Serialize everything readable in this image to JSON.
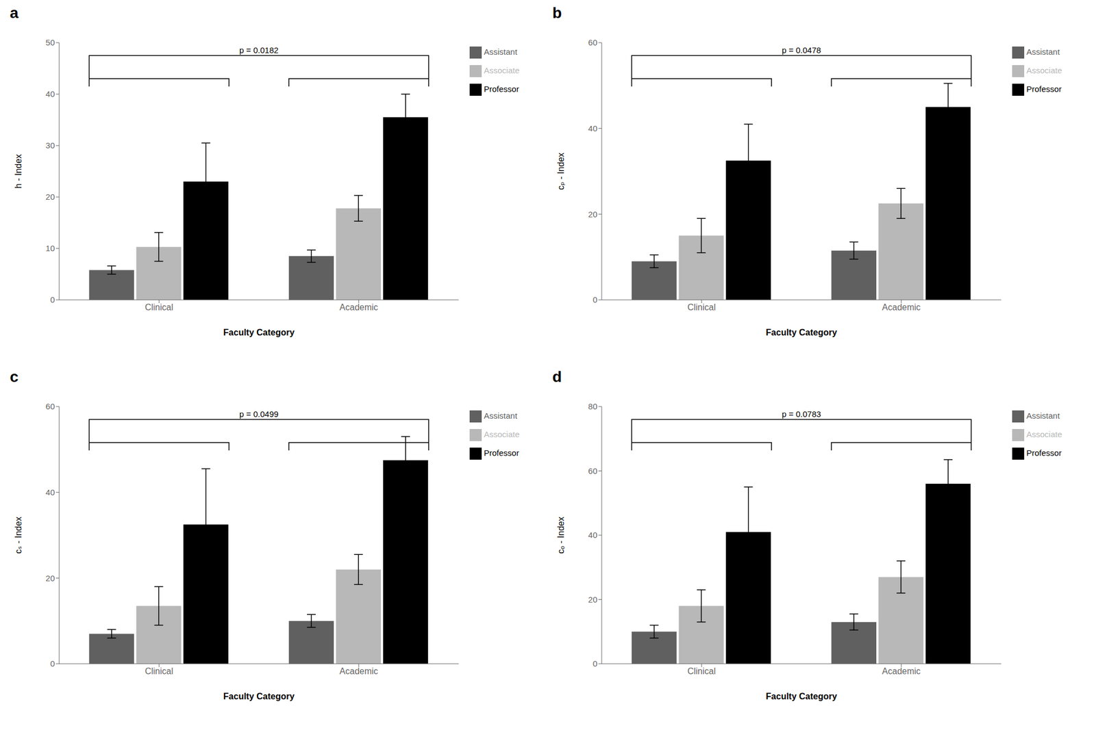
{
  "chart_data": [
    {
      "type": "bar",
      "title": "a",
      "x_label": "Faculty Category",
      "y_label": "h - Index",
      "categories": [
        "Clinical",
        "Academic"
      ],
      "series": [
        {
          "name": "Assistant",
          "color": "#606060",
          "values": [
            5.8,
            8.5
          ],
          "errors": [
            0.8,
            1.2
          ]
        },
        {
          "name": "Associate",
          "color": "#b8b8b8",
          "values": [
            10.3,
            17.8
          ],
          "errors": [
            2.8,
            2.5
          ]
        },
        {
          "name": "Professor",
          "color": "#000000",
          "values": [
            23.0,
            35.5
          ],
          "errors": [
            7.5,
            4.5
          ]
        }
      ],
      "ylim": [
        0,
        50
      ],
      "yticks": [
        0,
        10,
        20,
        30,
        40,
        50
      ],
      "annotations": [
        "p = 0.0182"
      ],
      "legend": "right",
      "grid": false
    },
    {
      "type": "bar",
      "title": "b",
      "x_label": "Faculty Category",
      "y_label": "cₚ - Index",
      "categories": [
        "Clinical",
        "Academic"
      ],
      "series": [
        {
          "name": "Assistant",
          "color": "#606060",
          "values": [
            9.0,
            11.5
          ],
          "errors": [
            1.5,
            2.0
          ]
        },
        {
          "name": "Associate",
          "color": "#b8b8b8",
          "values": [
            15.0,
            22.5
          ],
          "errors": [
            4.0,
            3.5
          ]
        },
        {
          "name": "Professor",
          "color": "#000000",
          "values": [
            32.5,
            45.0
          ],
          "errors": [
            8.5,
            5.5
          ]
        }
      ],
      "ylim": [
        0,
        60
      ],
      "yticks": [
        0,
        20,
        40,
        60
      ],
      "annotations": [
        "p = 0.0478"
      ],
      "legend": "right",
      "grid": false
    },
    {
      "type": "bar",
      "title": "c",
      "x_label": "Faculty Category",
      "y_label": "cₛ - Index",
      "categories": [
        "Clinical",
        "Academic"
      ],
      "series": [
        {
          "name": "Assistant",
          "color": "#606060",
          "values": [
            7.0,
            10.0
          ],
          "errors": [
            1.0,
            1.5
          ]
        },
        {
          "name": "Associate",
          "color": "#b8b8b8",
          "values": [
            13.5,
            22.0
          ],
          "errors": [
            4.5,
            3.5
          ]
        },
        {
          "name": "Professor",
          "color": "#000000",
          "values": [
            32.5,
            47.5
          ],
          "errors": [
            13.0,
            5.5
          ]
        }
      ],
      "ylim": [
        0,
        60
      ],
      "yticks": [
        0,
        20,
        40,
        60
      ],
      "annotations": [
        "p = 0.0499"
      ],
      "legend": "right",
      "grid": false
    },
    {
      "type": "bar",
      "title": "d",
      "x_label": "Faculty Category",
      "y_label": "cₒ - Index",
      "categories": [
        "Clinical",
        "Academic"
      ],
      "series": [
        {
          "name": "Assistant",
          "color": "#606060",
          "values": [
            10.0,
            13.0
          ],
          "errors": [
            2.0,
            2.5
          ]
        },
        {
          "name": "Associate",
          "color": "#b8b8b8",
          "values": [
            18.0,
            27.0
          ],
          "errors": [
            5.0,
            5.0
          ]
        },
        {
          "name": "Professor",
          "color": "#000000",
          "values": [
            41.0,
            56.0
          ],
          "errors": [
            14.0,
            7.5
          ]
        }
      ],
      "ylim": [
        0,
        80
      ],
      "yticks": [
        0,
        20,
        40,
        60,
        80
      ],
      "annotations": [
        "p = 0.0783"
      ],
      "legend": "right",
      "grid": false
    }
  ]
}
